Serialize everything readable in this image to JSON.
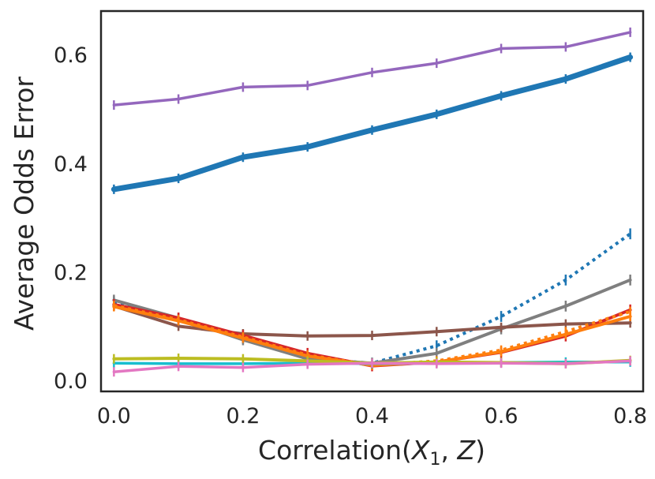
{
  "chart_data": {
    "type": "line",
    "title": "",
    "xlabel": "Correlation",
    "xlabel_math": "(X_1, Z)",
    "xlabel_parts": [
      "Correlation(",
      "X",
      "1",
      ", ",
      "Z",
      ")"
    ],
    "ylabel": "Average Odds Error",
    "xlim": [
      -0.02,
      0.82
    ],
    "ylim": [
      -0.02,
      0.68
    ],
    "x": [
      0.0,
      0.1,
      0.2,
      0.3,
      0.4,
      0.5,
      0.6,
      0.7,
      0.8
    ],
    "x_ticks": [
      0.0,
      0.2,
      0.4,
      0.6,
      0.8
    ],
    "x_tick_labels": [
      "0.0",
      "0.2",
      "0.4",
      "0.6",
      "0.8"
    ],
    "y_ticks": [
      0.0,
      0.2,
      0.4,
      0.6
    ],
    "y_tick_labels": [
      "0.0",
      "0.2",
      "0.4",
      "0.6"
    ],
    "grid": false,
    "legend": "none",
    "series": [
      {
        "name": "purple",
        "color": "#9467bd",
        "width": 3.5,
        "dash": "",
        "values": [
          0.507,
          0.518,
          0.54,
          0.543,
          0.567,
          0.584,
          0.611,
          0.614,
          0.641
        ],
        "err": 0.008
      },
      {
        "name": "blue",
        "color": "#1f77b4",
        "width": 7,
        "dash": "",
        "values": [
          0.352,
          0.372,
          0.411,
          0.43,
          0.461,
          0.49,
          0.524,
          0.555,
          0.595
        ],
        "err": 0.008
      },
      {
        "name": "blue-dotted",
        "color": "#1f77b4",
        "width": 4,
        "dash": "4 5",
        "values": [
          0.145,
          0.112,
          0.078,
          0.04,
          0.032,
          0.064,
          0.118,
          0.185,
          0.27
        ],
        "err": 0.01
      },
      {
        "name": "gray",
        "color": "#7f7f7f",
        "width": 4,
        "dash": "",
        "values": [
          0.148,
          0.115,
          0.075,
          0.04,
          0.032,
          0.05,
          0.095,
          0.137,
          0.185
        ],
        "err": 0.01
      },
      {
        "name": "brown",
        "color": "#8c564b",
        "width": 4,
        "dash": "",
        "values": [
          0.137,
          0.1,
          0.086,
          0.082,
          0.083,
          0.09,
          0.098,
          0.104,
          0.106
        ],
        "err": 0.008
      },
      {
        "name": "red",
        "color": "#d62728",
        "width": 4,
        "dash": "",
        "values": [
          0.14,
          0.115,
          0.083,
          0.05,
          0.027,
          0.034,
          0.052,
          0.082,
          0.13
        ],
        "err": 0.01
      },
      {
        "name": "orange-dotted",
        "color": "#ff7f0e",
        "width": 4,
        "dash": "4 5",
        "values": [
          0.138,
          0.112,
          0.08,
          0.047,
          0.028,
          0.036,
          0.056,
          0.09,
          0.127
        ],
        "err": 0.008
      },
      {
        "name": "orange",
        "color": "#ff7f0e",
        "width": 4,
        "dash": "",
        "values": [
          0.136,
          0.11,
          0.078,
          0.045,
          0.028,
          0.034,
          0.053,
          0.085,
          0.118
        ],
        "err": 0.008
      },
      {
        "name": "cyan",
        "color": "#17becf",
        "width": 3.5,
        "dash": "",
        "values": [
          0.032,
          0.031,
          0.031,
          0.032,
          0.031,
          0.032,
          0.033,
          0.034,
          0.034
        ],
        "err": 0.004
      },
      {
        "name": "olive",
        "color": "#bcbd22",
        "width": 4,
        "dash": "",
        "values": [
          0.04,
          0.041,
          0.04,
          0.036,
          0.032,
          0.034,
          0.033,
          0.031,
          0.037
        ],
        "err": 0.005
      },
      {
        "name": "pink",
        "color": "#e377c2",
        "width": 3.5,
        "dash": "",
        "values": [
          0.016,
          0.026,
          0.024,
          0.03,
          0.032,
          0.031,
          0.032,
          0.031,
          0.036
        ],
        "err": 0.004
      }
    ]
  }
}
